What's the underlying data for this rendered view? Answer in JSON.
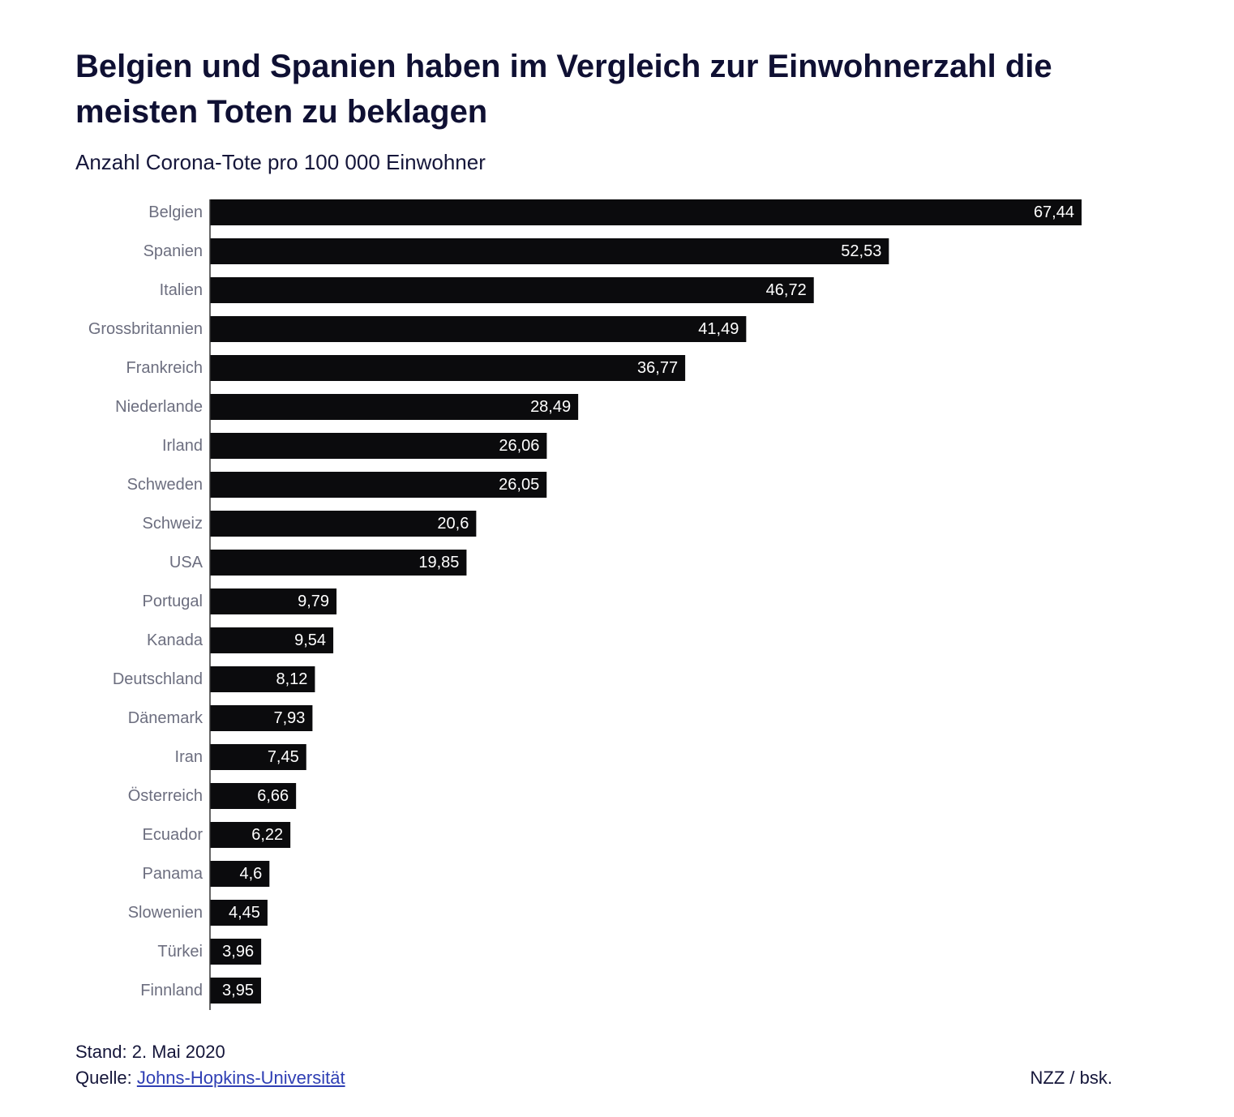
{
  "header": {
    "title": "Belgien und Spanien haben im Vergleich zur Einwohnerzahl die meisten Toten zu beklagen",
    "subtitle": "Anzahl Corona-Tote pro 100 000 Einwohner"
  },
  "footer": {
    "stand": "Stand: 2. Mai 2020",
    "source_prefix": "Quelle: ",
    "source_link": "Johns-Hopkins-Universität",
    "credit": "NZZ / bsk."
  },
  "colors": {
    "bar": "#0b0b0d",
    "axis": "#333333",
    "category_label": "#6c6e7f",
    "value_label": "#ffffff"
  },
  "chart_data": {
    "type": "bar",
    "orientation": "horizontal",
    "title": "Belgien und Spanien haben im Vergleich zur Einwohnerzahl die meisten Toten zu beklagen",
    "subtitle": "Anzahl Corona-Tote pro 100 000 Einwohner",
    "xlim": [
      0,
      67.44
    ],
    "grid": false,
    "categories": [
      "Belgien",
      "Spanien",
      "Italien",
      "Grossbritannien",
      "Frankreich",
      "Niederlande",
      "Irland",
      "Schweden",
      "Schweiz",
      "USA",
      "Portugal",
      "Kanada",
      "Deutschland",
      "Dänemark",
      "Iran",
      "Österreich",
      "Ecuador",
      "Panama",
      "Slowenien",
      "Türkei",
      "Finnland"
    ],
    "values": [
      67.44,
      52.53,
      46.72,
      41.49,
      36.77,
      28.49,
      26.06,
      26.05,
      20.6,
      19.85,
      9.79,
      9.54,
      8.12,
      7.93,
      7.45,
      6.66,
      6.22,
      4.6,
      4.45,
      3.96,
      3.95
    ],
    "value_labels": [
      "67,44",
      "52,53",
      "46,72",
      "41,49",
      "36,77",
      "28,49",
      "26,06",
      "26,05",
      "20,6",
      "19,85",
      "9,79",
      "9,54",
      "8,12",
      "7,93",
      "7,45",
      "6,66",
      "6,22",
      "4,6",
      "4,45",
      "3,96",
      "3,95"
    ]
  }
}
